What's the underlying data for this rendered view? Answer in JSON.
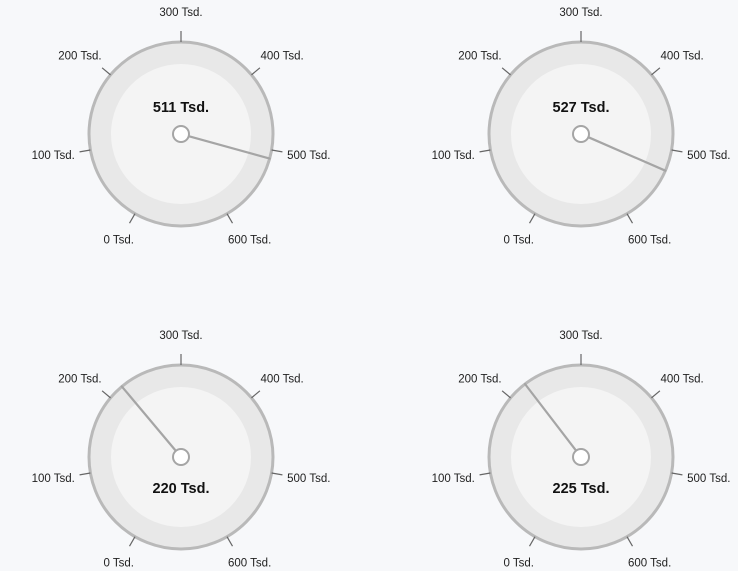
{
  "chart_data": {
    "type": "gauge",
    "min": 0,
    "max": 600,
    "tick_values": [
      0,
      100,
      200,
      300,
      400,
      500,
      600
    ],
    "tick_labels": [
      "0 Tsd.",
      "100 Tsd.",
      "200 Tsd.",
      "300 Tsd.",
      "400 Tsd.",
      "500 Tsd.",
      "600 Tsd."
    ],
    "start_angle_deg": -150,
    "end_angle_deg": 150,
    "gauges": [
      {
        "value": 511,
        "value_label": "511 Tsd."
      },
      {
        "value": 527,
        "value_label": "527 Tsd."
      },
      {
        "value": 220,
        "value_label": "220 Tsd."
      },
      {
        "value": 225,
        "value_label": "225 Tsd."
      }
    ],
    "colors": {
      "ring": "#b9b9b9",
      "face_outer": "#e8e8e8",
      "face_inner": "#f4f4f4",
      "needle": "#a5a5a5",
      "tick": "#666666",
      "text": "#222222"
    }
  }
}
